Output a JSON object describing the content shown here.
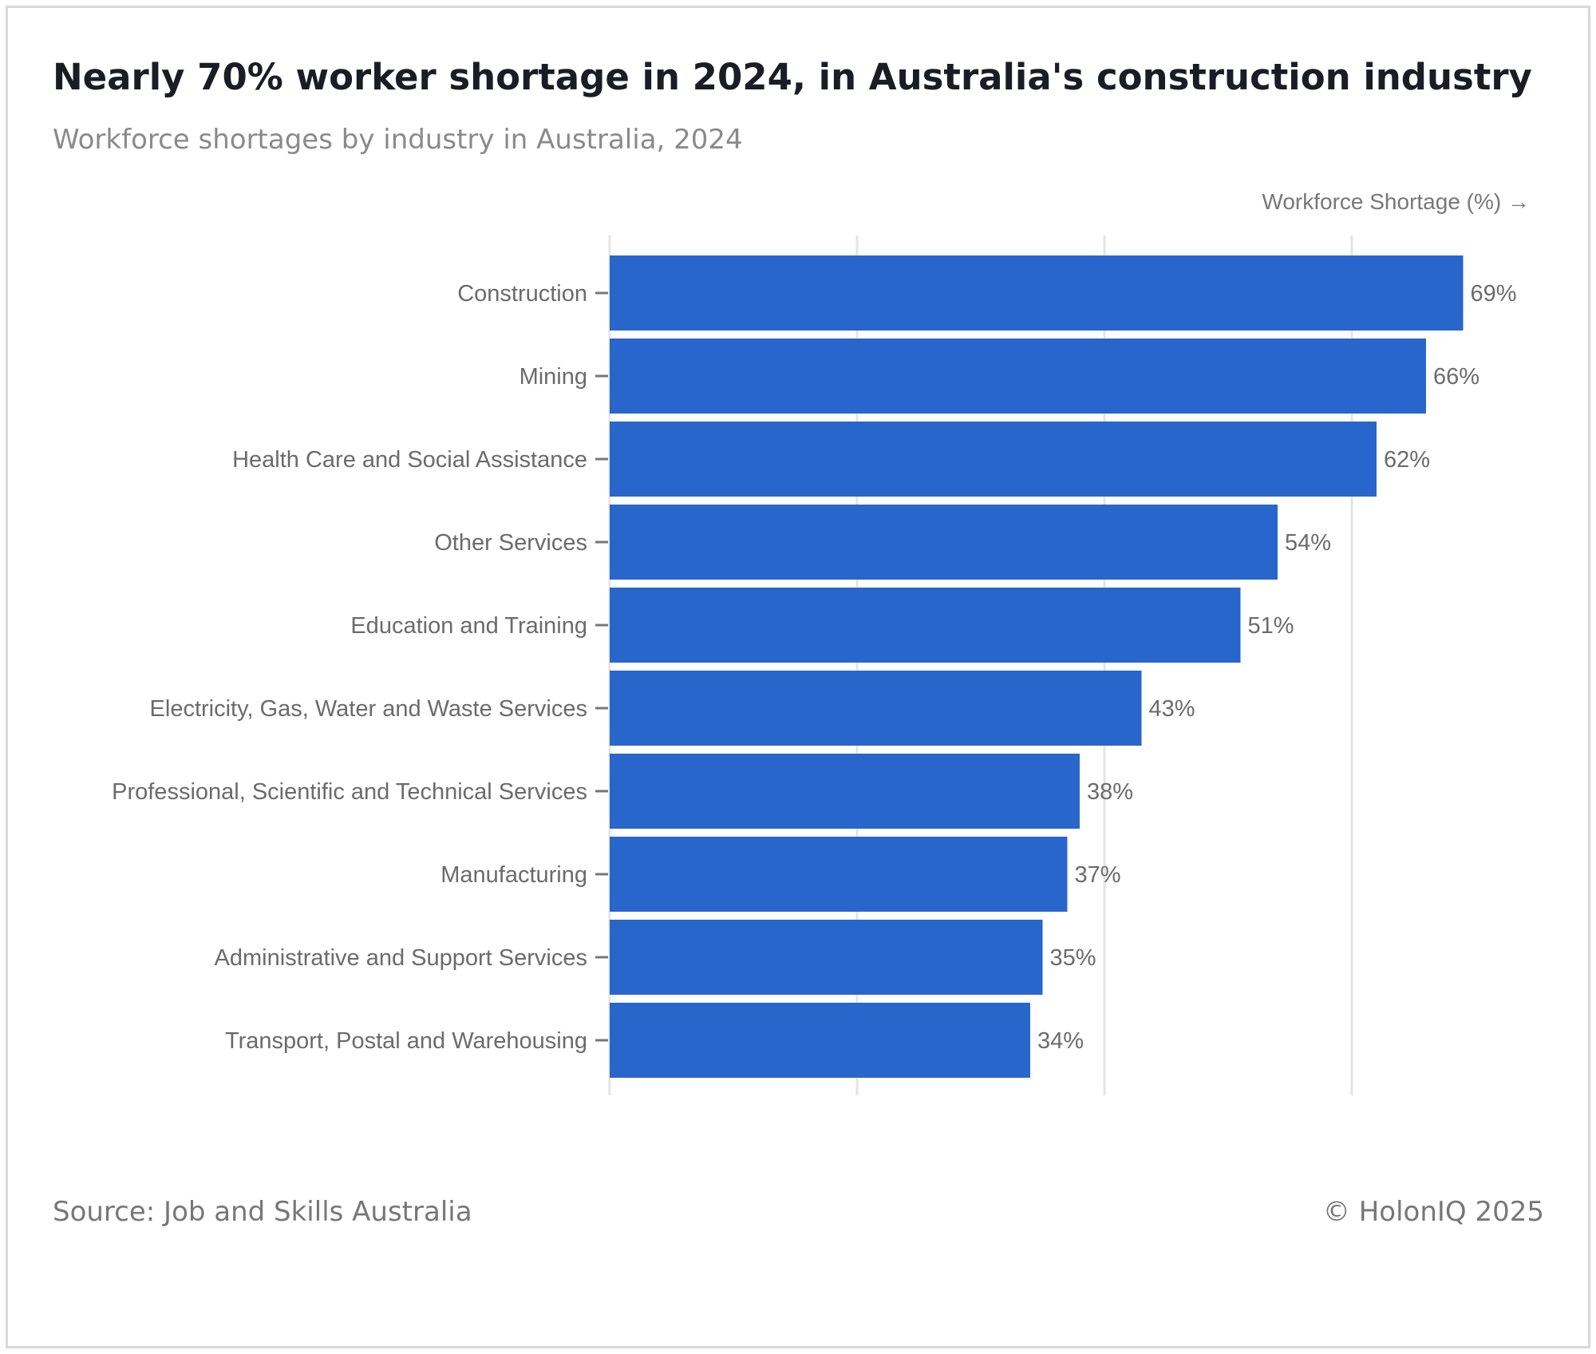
{
  "title": "Nearly 70% worker shortage in 2024, in Australia's construction industry",
  "subtitle": "Workforce shortages by industry in Australia, 2024",
  "source": "Source: Job and Skills Australia",
  "copyright": "© HolonIQ 2025",
  "colors": {
    "bar": "#2966cc",
    "grid": "#e4e4e4",
    "label": "#6b6b6b",
    "tick": "#777777"
  },
  "chart_data": {
    "type": "bar",
    "orientation": "horizontal",
    "title": "Nearly 70% worker shortage in 2024, in Australia's construction industry",
    "subtitle": "Workforce shortages by industry in Australia, 2024",
    "xlabel": "Workforce Shortage (%) →",
    "ylabel": "",
    "xlim": [
      0,
      75
    ],
    "grid": true,
    "categories": [
      "Construction",
      "Mining",
      "Health Care and Social Assistance",
      "Other Services",
      "Education and Training",
      "Electricity, Gas, Water and Waste Services",
      "Professional, Scientific and Technical Services",
      "Manufacturing",
      "Administrative and Support Services",
      "Transport, Postal and Warehousing"
    ],
    "values": [
      69,
      66,
      62,
      54,
      51,
      43,
      38,
      37,
      35,
      34
    ],
    "value_labels": [
      "69%",
      "66%",
      "62%",
      "54%",
      "51%",
      "43%",
      "38%",
      "37%",
      "35%",
      "34%"
    ]
  }
}
